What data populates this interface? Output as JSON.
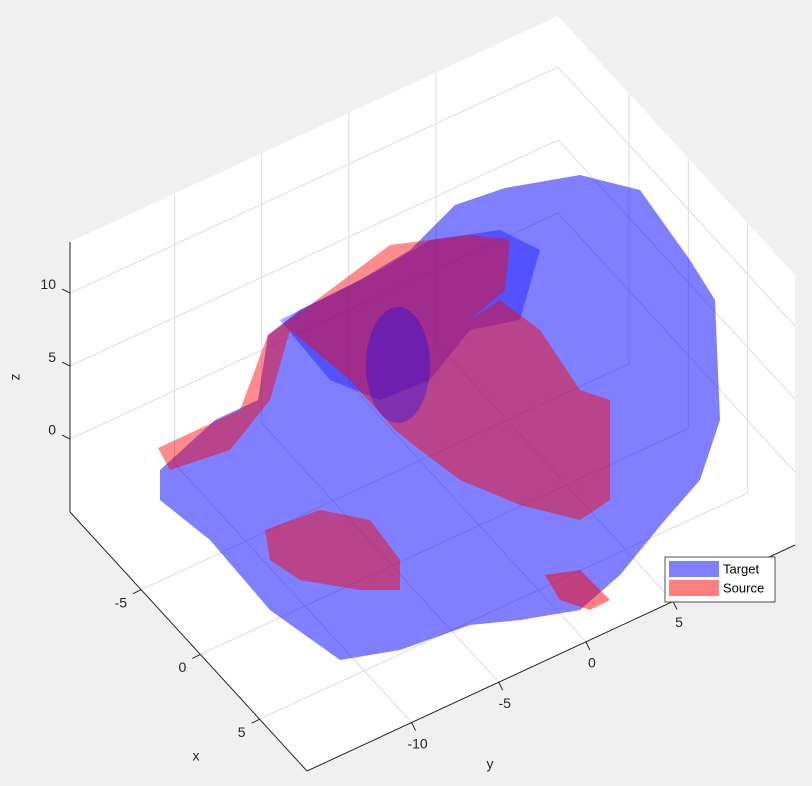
{
  "chart_data": {
    "type": "surface3d",
    "xlabel": "x",
    "ylabel": "y",
    "zlabel": "z",
    "xlim": [
      -11,
      9
    ],
    "xticks": [
      -5,
      0,
      5
    ],
    "ylim": [
      -16,
      12
    ],
    "yticks": [
      -10,
      -5,
      0,
      5
    ],
    "zlim": [
      -5,
      13.5
    ],
    "zticks": [
      0,
      5,
      10
    ],
    "grid": true,
    "legend_position": "southeast",
    "series": [
      {
        "name": "Target",
        "color": "#0000ff"
      },
      {
        "name": "Source",
        "color": "#ff0000"
      }
    ]
  }
}
